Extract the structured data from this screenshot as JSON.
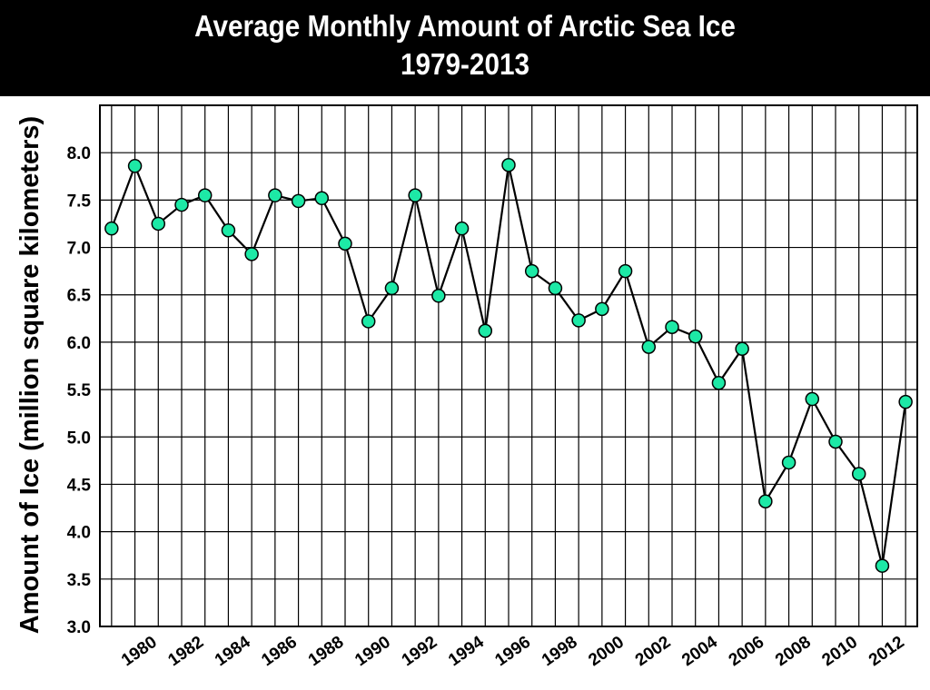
{
  "chart_data": {
    "type": "line",
    "title": "Average Monthly Amount of Arctic Sea Ice",
    "subtitle": "1979-2013",
    "xlabel": "",
    "ylabel": "Amount of Ice (million square kilometers)",
    "ylim": [
      3.0,
      8.5
    ],
    "yticks": [
      3.0,
      3.5,
      4.0,
      4.5,
      5.0,
      5.5,
      6.0,
      6.5,
      7.0,
      7.5,
      8.0
    ],
    "ytick_labels": [
      "3.0",
      "3.5",
      "4.0",
      "4.5",
      "5.0",
      "5.5",
      "6.0",
      "6.5",
      "7.0",
      "7.5",
      "8.0"
    ],
    "xlim": [
      1978.5,
      2013.5
    ],
    "xticks": [
      1980,
      1982,
      1984,
      1986,
      1988,
      1990,
      1992,
      1994,
      1996,
      1998,
      2000,
      2002,
      2004,
      2006,
      2008,
      2010,
      2012
    ],
    "xtick_labels": [
      "1980",
      "1982",
      "1984",
      "1986",
      "1988",
      "1990",
      "1992",
      "1994",
      "1996",
      "1998",
      "2000",
      "2002",
      "2004",
      "2006",
      "2008",
      "2010",
      "2012"
    ],
    "grid": true,
    "marker_color": "#1de9a6",
    "line_color": "#000000",
    "x": [
      1979,
      1980,
      1981,
      1982,
      1983,
      1984,
      1985,
      1986,
      1987,
      1988,
      1989,
      1990,
      1991,
      1992,
      1993,
      1994,
      1995,
      1996,
      1997,
      1998,
      1999,
      2000,
      2001,
      2002,
      2003,
      2004,
      2005,
      2006,
      2007,
      2008,
      2009,
      2010,
      2011,
      2012,
      2013
    ],
    "values": [
      7.2,
      7.86,
      7.25,
      7.45,
      7.55,
      7.18,
      6.93,
      7.55,
      7.49,
      7.52,
      7.04,
      6.22,
      6.57,
      7.55,
      6.49,
      7.2,
      6.12,
      7.87,
      6.75,
      6.57,
      6.23,
      6.35,
      6.75,
      5.95,
      6.16,
      6.06,
      5.57,
      5.93,
      4.32,
      4.73,
      5.4,
      4.95,
      4.61,
      3.64,
      5.37
    ]
  }
}
